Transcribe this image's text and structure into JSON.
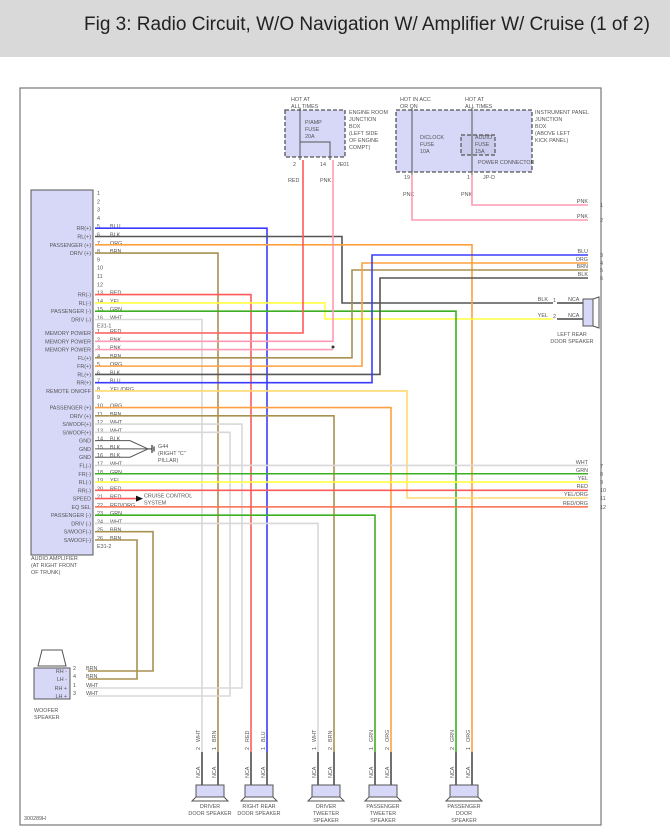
{
  "title": "Fig 3: Radio Circuit, W/O Navigation W/ Amplifier W/ Cruise (1 of 2)",
  "figure_id": "300289H",
  "wire_colors": {
    "BLU": "#3b3bff",
    "BLK": "#555555",
    "ORG": "#ffa040",
    "BRN": "#a89050",
    "RED": "#ff5a5a",
    "YEL": "#ffff40",
    "GRN": "#3cb020",
    "WHT": "#d8d8d8",
    "PNK": "#ff9ab4",
    "YEL/ORG": "#ffd870",
    "RED/ORG": "#ff6a4a"
  },
  "amplifier": {
    "name": [
      "AUDIO AMPLIFIER",
      "(AT RIGHT FRONT",
      "OF TRUNK)"
    ],
    "connector1_label": "E31-1",
    "connector2_label": "E31-2",
    "connector1": [
      {
        "pin": "1",
        "label": "",
        "wire": ""
      },
      {
        "pin": "2",
        "label": "",
        "wire": ""
      },
      {
        "pin": "3",
        "label": "",
        "wire": ""
      },
      {
        "pin": "4",
        "label": "",
        "wire": ""
      },
      {
        "pin": "5",
        "label": "RR(+)",
        "wire": "BLU"
      },
      {
        "pin": "6",
        "label": "RL(+)",
        "wire": "BLK"
      },
      {
        "pin": "7",
        "label": "PASSENGER (+)",
        "wire": "ORG"
      },
      {
        "pin": "8",
        "label": "DRIV (+)",
        "wire": "BRN"
      },
      {
        "pin": "9",
        "label": "",
        "wire": ""
      },
      {
        "pin": "10",
        "label": "",
        "wire": ""
      },
      {
        "pin": "11",
        "label": "",
        "wire": ""
      },
      {
        "pin": "12",
        "label": "",
        "wire": ""
      },
      {
        "pin": "13",
        "label": "RR(-)",
        "wire": "RED"
      },
      {
        "pin": "14",
        "label": "RL(-)",
        "wire": "YEL"
      },
      {
        "pin": "15",
        "label": "PASSENGER (-)",
        "wire": "GRN"
      },
      {
        "pin": "16",
        "label": "DRIV (-)",
        "wire": "WHT"
      }
    ],
    "connector2": [
      {
        "pin": "1",
        "label": "MEMORY POWER",
        "wire": "RED"
      },
      {
        "pin": "2",
        "label": "MEMORY POWER",
        "wire": "PNK"
      },
      {
        "pin": "3",
        "label": "MEMORY POWER",
        "wire": "PNK"
      },
      {
        "pin": "4",
        "label": "FL(+)",
        "wire": "BRN"
      },
      {
        "pin": "5",
        "label": "FR(+)",
        "wire": "ORG"
      },
      {
        "pin": "6",
        "label": "RL(+)",
        "wire": "BLK"
      },
      {
        "pin": "7",
        "label": "RR(+)",
        "wire": "BLU"
      },
      {
        "pin": "8",
        "label": "REMOTE ON/OFF",
        "wire": "YEL/ORG"
      },
      {
        "pin": "9",
        "label": "",
        "wire": ""
      },
      {
        "pin": "10",
        "label": "PASSENGER (+)",
        "wire": "ORG"
      },
      {
        "pin": "11",
        "label": "DRIV (+)",
        "wire": "BRN"
      },
      {
        "pin": "12",
        "label": "S/WOOF(+)",
        "wire": "WHT"
      },
      {
        "pin": "13",
        "label": "S/WOOF(+)",
        "wire": "WHT"
      },
      {
        "pin": "14",
        "label": "GND",
        "wire": "BLK"
      },
      {
        "pin": "15",
        "label": "GND",
        "wire": "BLK"
      },
      {
        "pin": "16",
        "label": "GND",
        "wire": "BLK"
      },
      {
        "pin": "17",
        "label": "FL(-)",
        "wire": "WHT"
      },
      {
        "pin": "18",
        "label": "FR(-)",
        "wire": "GRN"
      },
      {
        "pin": "19",
        "label": "RL(-)",
        "wire": "YEL"
      },
      {
        "pin": "20",
        "label": "RR(-)",
        "wire": "RED"
      },
      {
        "pin": "21",
        "label": "SPEED",
        "wire": "RED"
      },
      {
        "pin": "22",
        "label": "EQ SEL",
        "wire": "RED/ORG"
      },
      {
        "pin": "23",
        "label": "PASSENGER (-)",
        "wire": "GRN"
      },
      {
        "pin": "24",
        "label": "DRIV (-)",
        "wire": "WHT"
      },
      {
        "pin": "25",
        "label": "S/WOOF(-)",
        "wire": "BRN"
      },
      {
        "pin": "26",
        "label": "S/WOOF(-)",
        "wire": "BRN"
      }
    ]
  },
  "engine_jb": {
    "hot": [
      "HOT AT",
      "ALL TIMES"
    ],
    "fuse": [
      "P/AMP",
      "FUSE",
      "20A"
    ],
    "name": [
      "ENGINE ROOM",
      "JUNCTION",
      "BOX",
      "(LEFT SIDE",
      "OF ENGINE",
      "COMPT)"
    ],
    "pins": [
      "2",
      "14"
    ],
    "connector": "JE01",
    "wires": [
      "RED",
      "PNK"
    ]
  },
  "ip_jb": {
    "hot1": [
      "HOT IN ACC",
      "OR ON"
    ],
    "hot2": [
      "HOT AT",
      "ALL TIMES"
    ],
    "fuse1": [
      "D/CLOCK",
      "FUSE",
      "10A"
    ],
    "fuse2": [
      "AUDIO",
      "FUSE",
      "15A"
    ],
    "power_connector": "POWER CONNECTOR",
    "name": [
      "INSTRUMENT PANEL",
      "JUNCTION",
      "BOX",
      "(ABOVE LEFT",
      "KICK PANEL)"
    ],
    "pins": [
      "19",
      "1"
    ],
    "connector": "JP-D",
    "wires": [
      "PNK",
      "PNK"
    ]
  },
  "outputs": [
    {
      "num": "1",
      "wire": "PNK"
    },
    {
      "num": "2",
      "wire": "PNK"
    },
    {
      "num": "3",
      "wire": "BLU"
    },
    {
      "num": "4",
      "wire": "ORG"
    },
    {
      "num": "5",
      "wire": "BRN"
    },
    {
      "num": "6",
      "wire": "BLK"
    },
    {
      "num": "7",
      "wire": "WHT"
    },
    {
      "num": "8",
      "wire": "GRN"
    },
    {
      "num": "9",
      "wire": "YEL"
    },
    {
      "num": "10",
      "wire": "RED"
    },
    {
      "num": "11",
      "wire": "YEL/ORG"
    },
    {
      "num": "12",
      "wire": "RED/ORG"
    }
  ],
  "left_rear_speaker": {
    "name": [
      "LEFT REAR",
      "DOOR SPEAKER"
    ],
    "pins": [
      {
        "pin": "1",
        "wire": "BLK",
        "term": "NCA"
      },
      {
        "pin": "2",
        "wire": "YEL",
        "term": "NCA"
      }
    ]
  },
  "ground": {
    "name": [
      "G44",
      "(RIGHT \"C\"",
      "PILLAR)"
    ]
  },
  "cruise": {
    "name": [
      "CRUISE CONTROL",
      "SYSTEM"
    ]
  },
  "woofer": {
    "name": [
      "WOOFER",
      "SPEAKER"
    ],
    "pins": [
      {
        "label": "RH  -",
        "pin": "2",
        "wire": "BRN"
      },
      {
        "label": "LH  -",
        "pin": "4",
        "wire": "BRN"
      },
      {
        "label": "RH  +",
        "pin": "1",
        "wire": "WHT"
      },
      {
        "label": "LH  +",
        "pin": "3",
        "wire": "WHT"
      }
    ]
  },
  "bottom_speakers": [
    {
      "name": [
        "DRIVER",
        "DOOR SPEAKER"
      ],
      "pins": [
        {
          "pin": "2",
          "wire": "WHT"
        },
        {
          "pin": "1",
          "wire": "BRN"
        }
      ],
      "term": "NCA"
    },
    {
      "name": [
        "RIGHT REAR",
        "DOOR SPEAKER"
      ],
      "pins": [
        {
          "pin": "2",
          "wire": "RED"
        },
        {
          "pin": "1",
          "wire": "BLU"
        }
      ],
      "term": "NCA"
    },
    {
      "name": [
        "DRIVER",
        "TWEETER",
        "SPEAKER"
      ],
      "pins": [
        {
          "pin": "1",
          "wire": "WHT"
        },
        {
          "pin": "2",
          "wire": "BRN"
        }
      ],
      "term": "NCA"
    },
    {
      "name": [
        "PASSENGER",
        "TWEETER",
        "SPEAKER"
      ],
      "pins": [
        {
          "pin": "1",
          "wire": "GRN"
        },
        {
          "pin": "2",
          "wire": "ORG"
        }
      ],
      "term": "NCA"
    },
    {
      "name": [
        "PASSENGER",
        "DOOR",
        "SPEAKER"
      ],
      "pins": [
        {
          "pin": "2",
          "wire": "GRN"
        },
        {
          "pin": "1",
          "wire": "ORG"
        }
      ],
      "term": "NCA"
    }
  ]
}
